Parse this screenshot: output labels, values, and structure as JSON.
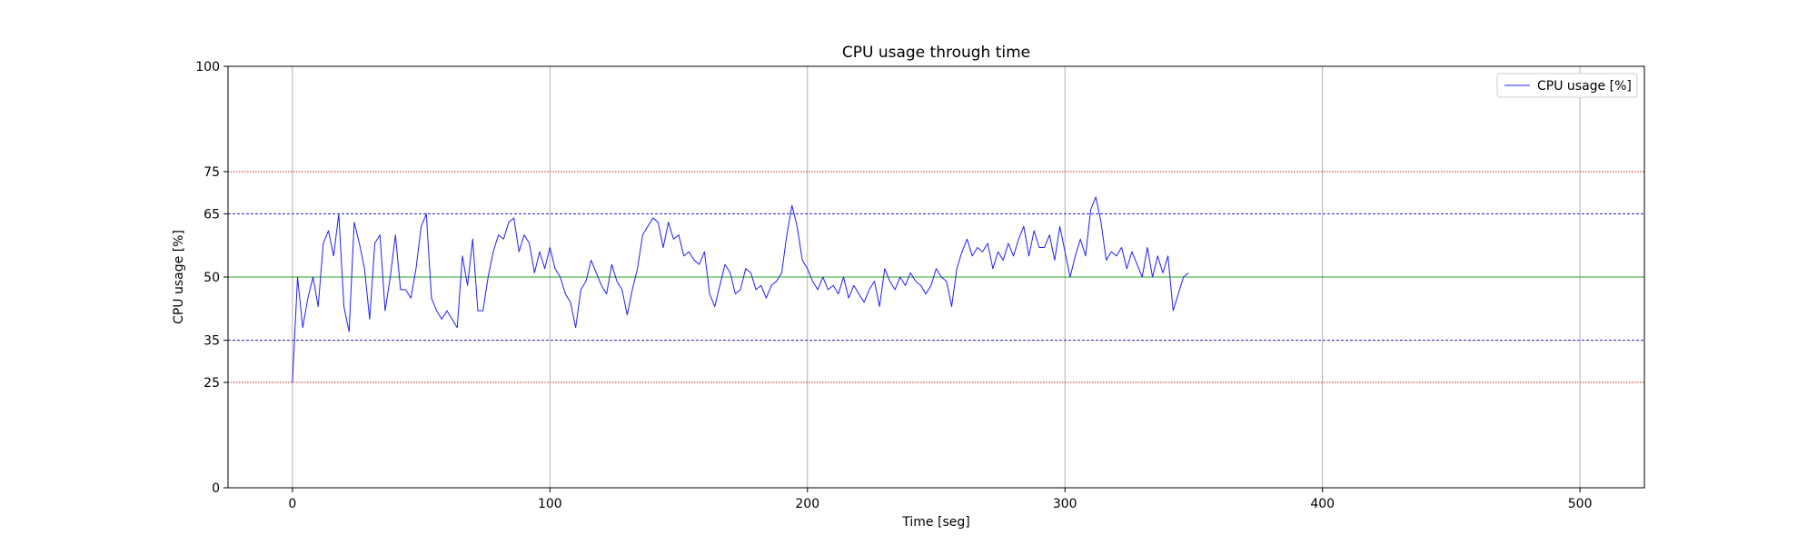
{
  "chart_data": {
    "type": "line",
    "title": "CPU usage through time",
    "xlabel": "Time [seg]",
    "ylabel": "CPU usage [%]",
    "xlim": [
      -25,
      525
    ],
    "ylim": [
      0,
      100
    ],
    "x_ticks": [
      0,
      100,
      200,
      300,
      400,
      500
    ],
    "y_ticks": [
      0,
      25,
      35,
      50,
      65,
      75,
      100
    ],
    "grid": "vertical",
    "legend": {
      "position": "top-right",
      "entries": [
        "CPU usage [%]"
      ]
    },
    "reference_lines": [
      {
        "y": 75,
        "color": "#d62728",
        "style": "dotted"
      },
      {
        "y": 65,
        "color": "#1f1fd6",
        "style": "dashed"
      },
      {
        "y": 50,
        "color": "#2ca02c",
        "style": "solid"
      },
      {
        "y": 35,
        "color": "#1f1fd6",
        "style": "dashed"
      },
      {
        "y": 25,
        "color": "#d62728",
        "style": "dotted"
      }
    ],
    "series": [
      {
        "name": "CPU usage [%]",
        "color": "#1f1fff",
        "x_start": 0,
        "x_step": 2,
        "values": [
          25,
          50,
          38,
          45,
          50,
          43,
          58,
          61,
          55,
          65,
          43,
          37,
          63,
          58,
          52,
          40,
          58,
          60,
          42,
          50,
          60,
          47,
          47,
          45,
          52,
          62,
          65,
          45,
          42,
          40,
          42,
          40,
          38,
          55,
          48,
          59,
          42,
          42,
          50,
          56,
          60,
          59,
          63,
          64,
          56,
          60,
          58,
          51,
          56,
          52,
          57,
          52,
          50,
          46,
          44,
          38,
          47,
          49,
          54,
          51,
          48,
          46,
          53,
          49,
          47,
          41,
          47,
          52,
          60,
          62,
          64,
          63,
          57,
          63,
          59,
          60,
          55,
          56,
          54,
          53,
          56,
          46,
          43,
          48,
          53,
          51,
          46,
          47,
          52,
          51,
          47,
          48,
          45,
          48,
          49,
          51,
          60,
          67,
          62,
          54,
          52,
          49,
          47,
          50,
          47,
          48,
          46,
          50,
          45,
          48,
          46,
          44,
          47,
          49,
          43,
          52,
          49,
          47,
          50,
          48,
          51,
          49,
          48,
          46,
          48,
          52,
          50,
          49,
          43,
          52,
          56,
          59,
          55,
          57,
          56,
          58,
          52,
          56,
          54,
          58,
          55,
          59,
          62,
          55,
          61,
          57,
          57,
          60,
          54,
          62,
          56,
          50,
          55,
          59,
          55,
          66,
          69,
          63,
          54,
          56,
          55,
          57,
          52,
          56,
          53,
          50,
          57,
          50,
          55,
          51,
          55,
          42,
          46,
          50,
          51
        ]
      }
    ]
  }
}
